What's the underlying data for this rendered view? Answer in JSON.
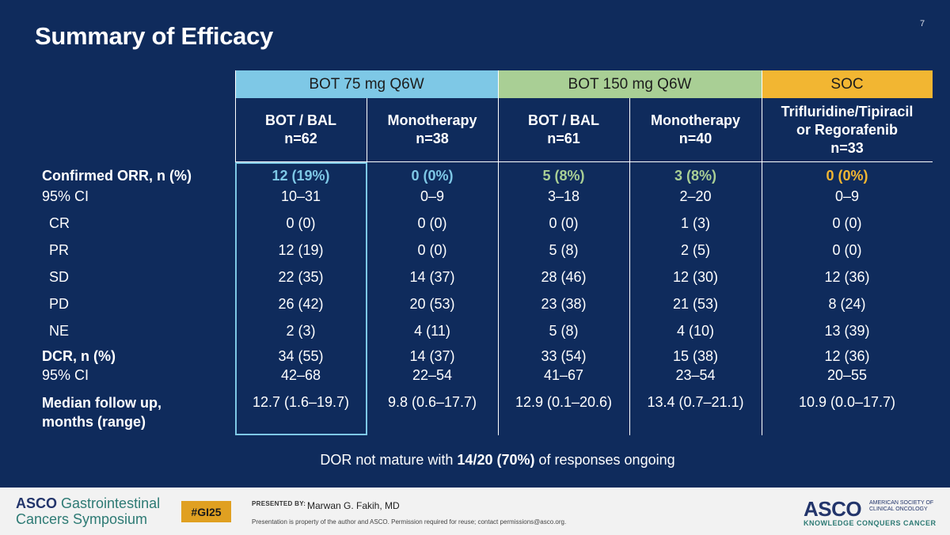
{
  "slide": {
    "title": "Summary of Efficacy",
    "page_number": "7"
  },
  "groups": [
    "BOT 75 mg Q6W",
    "BOT 150 mg Q6W",
    "SOC"
  ],
  "columns": [
    "BOT / BAL\nn=62",
    "Monotherapy\nn=38",
    "BOT / BAL\nn=61",
    "Monotherapy\nn=40",
    "Trifluridine/Tipiracil\nor Regorafenib\nn=33"
  ],
  "rows": {
    "orr": {
      "label": "Confirmed ORR, n (%)",
      "values": [
        "12 (19%)",
        "0 (0%)",
        "5 (8%)",
        "3 (8%)",
        "0 (0%)"
      ]
    },
    "orr_ci": {
      "label": "95% CI",
      "values": [
        "10–31",
        "0–9",
        "3–18",
        "2–20",
        "0–9"
      ]
    },
    "cr": {
      "label": "CR",
      "values": [
        "0 (0)",
        "0 (0)",
        "0 (0)",
        "1 (3)",
        "0 (0)"
      ]
    },
    "pr": {
      "label": "PR",
      "values": [
        "12 (19)",
        "0 (0)",
        "5 (8)",
        "2 (5)",
        "0 (0)"
      ]
    },
    "sd": {
      "label": "SD",
      "values": [
        "22 (35)",
        "14 (37)",
        "28 (46)",
        "12 (30)",
        "12 (36)"
      ]
    },
    "pd": {
      "label": "PD",
      "values": [
        "26 (42)",
        "20 (53)",
        "23 (38)",
        "21 (53)",
        "8 (24)"
      ]
    },
    "ne": {
      "label": "NE",
      "values": [
        "2 (3)",
        "4 (11)",
        "5 (8)",
        "4 (10)",
        "13 (39)"
      ]
    },
    "dcr": {
      "label": "DCR, n (%)",
      "values": [
        "34 (55)",
        "14 (37)",
        "33 (54)",
        "15 (38)",
        "12 (36)"
      ]
    },
    "dcr_ci": {
      "label": "95% CI",
      "values": [
        "42–68",
        "22–54",
        "41–67",
        "23–54",
        "20–55"
      ]
    },
    "followup": {
      "label": "Median follow up,\nmonths (range)",
      "values": [
        "12.7 (1.6–19.7)",
        "9.8 (0.6–17.7)",
        "12.9 (0.1–20.6)",
        "13.4 (0.7–21.1)",
        "10.9 (0.0–17.7)"
      ]
    }
  },
  "note": {
    "pre": "DOR not mature with ",
    "bold": "14/20 (70%)",
    "post": " of responses ongoing"
  },
  "footer": {
    "symposium_asco": "ASCO",
    "symposium_line1": "Gastrointestinal",
    "symposium_line2": "Cancers Symposium",
    "hashtag": "#GI25",
    "presented_by": "PRESENTED BY:",
    "presenter": "Marwan G. Fakih, MD",
    "disclaimer": "Presentation is property of the author and ASCO. Permission required for reuse; contact permissions@asco.org.",
    "logo": "ASCO",
    "logo_sub": "AMERICAN SOCIETY OF CLINICAL ONCOLOGY",
    "logo_tagline": "KNOWLEDGE CONQUERS CANCER"
  },
  "colors": {
    "background": "#0f2b5c",
    "group1": "#7ec8e6",
    "group2": "#a9cf95",
    "group3": "#f2b632"
  }
}
